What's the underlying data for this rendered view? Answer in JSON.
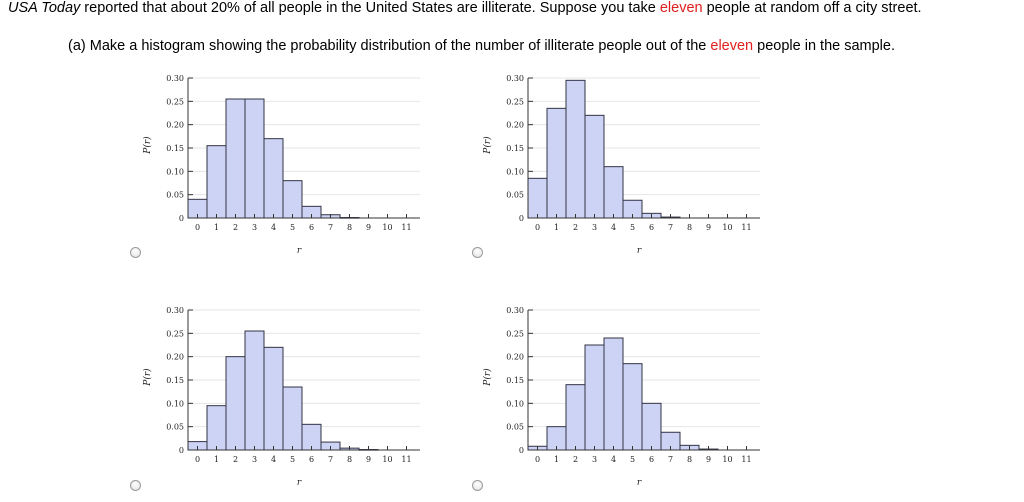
{
  "question": {
    "source_italic": "USA Today",
    "text_a": " reported that about 20% of all people in the United States are illiterate. Suppose you take ",
    "highlight_a": "eleven",
    "text_b": " people at random off a city street."
  },
  "part_a": {
    "text_a": "(a) Make a histogram showing the probability distribution of the number of illiterate people out of the ",
    "highlight": "eleven",
    "text_b": " people in the sample."
  },
  "colors": {
    "highlight": "#e0201c",
    "bar_fill": "#ccd3f5",
    "bar_stroke": "#333344",
    "grid": "#e6e6e6"
  },
  "chart_data": [
    {
      "type": "bar",
      "option": "top-left",
      "xlabel": "r",
      "ylabel": "P(r)",
      "categories": [
        "0",
        "1",
        "2",
        "3",
        "4",
        "5",
        "6",
        "7",
        "8",
        "9",
        "10",
        "11"
      ],
      "values": [
        0.04,
        0.155,
        0.255,
        0.255,
        0.17,
        0.08,
        0.025,
        0.007,
        0.001,
        0,
        0,
        0
      ],
      "ylim": [
        0,
        0.3
      ],
      "yticks": [
        "0",
        "0.05",
        "0.10",
        "0.15",
        "0.20",
        "0.25",
        "0.30"
      ],
      "grid": true
    },
    {
      "type": "bar",
      "option": "top-right",
      "xlabel": "r",
      "ylabel": "P(r)",
      "categories": [
        "0",
        "1",
        "2",
        "3",
        "4",
        "5",
        "6",
        "7",
        "8",
        "9",
        "10",
        "11"
      ],
      "values": [
        0.085,
        0.235,
        0.295,
        0.22,
        0.11,
        0.038,
        0.01,
        0.002,
        0,
        0,
        0,
        0
      ],
      "ylim": [
        0,
        0.3
      ],
      "yticks": [
        "0",
        "0.05",
        "0.10",
        "0.15",
        "0.20",
        "0.25",
        "0.30"
      ],
      "grid": true
    },
    {
      "type": "bar",
      "option": "bottom-left",
      "xlabel": "r",
      "ylabel": "P(r)",
      "categories": [
        "0",
        "1",
        "2",
        "3",
        "4",
        "5",
        "6",
        "7",
        "8",
        "9",
        "10",
        "11"
      ],
      "values": [
        0.018,
        0.095,
        0.2,
        0.255,
        0.22,
        0.135,
        0.055,
        0.017,
        0.004,
        0.001,
        0,
        0
      ],
      "ylim": [
        0,
        0.3
      ],
      "yticks": [
        "0",
        "0.05",
        "0.10",
        "0.15",
        "0.20",
        "0.25",
        "0.30"
      ],
      "grid": true
    },
    {
      "type": "bar",
      "option": "bottom-right",
      "xlabel": "r",
      "ylabel": "P(r)",
      "categories": [
        "0",
        "1",
        "2",
        "3",
        "4",
        "5",
        "6",
        "7",
        "8",
        "9",
        "10",
        "11"
      ],
      "values": [
        0.008,
        0.05,
        0.14,
        0.225,
        0.24,
        0.185,
        0.1,
        0.038,
        0.01,
        0.002,
        0,
        0
      ],
      "ylim": [
        0,
        0.3
      ],
      "yticks": [
        "0",
        "0.05",
        "0.10",
        "0.15",
        "0.20",
        "0.25",
        "0.30"
      ],
      "grid": true
    }
  ]
}
